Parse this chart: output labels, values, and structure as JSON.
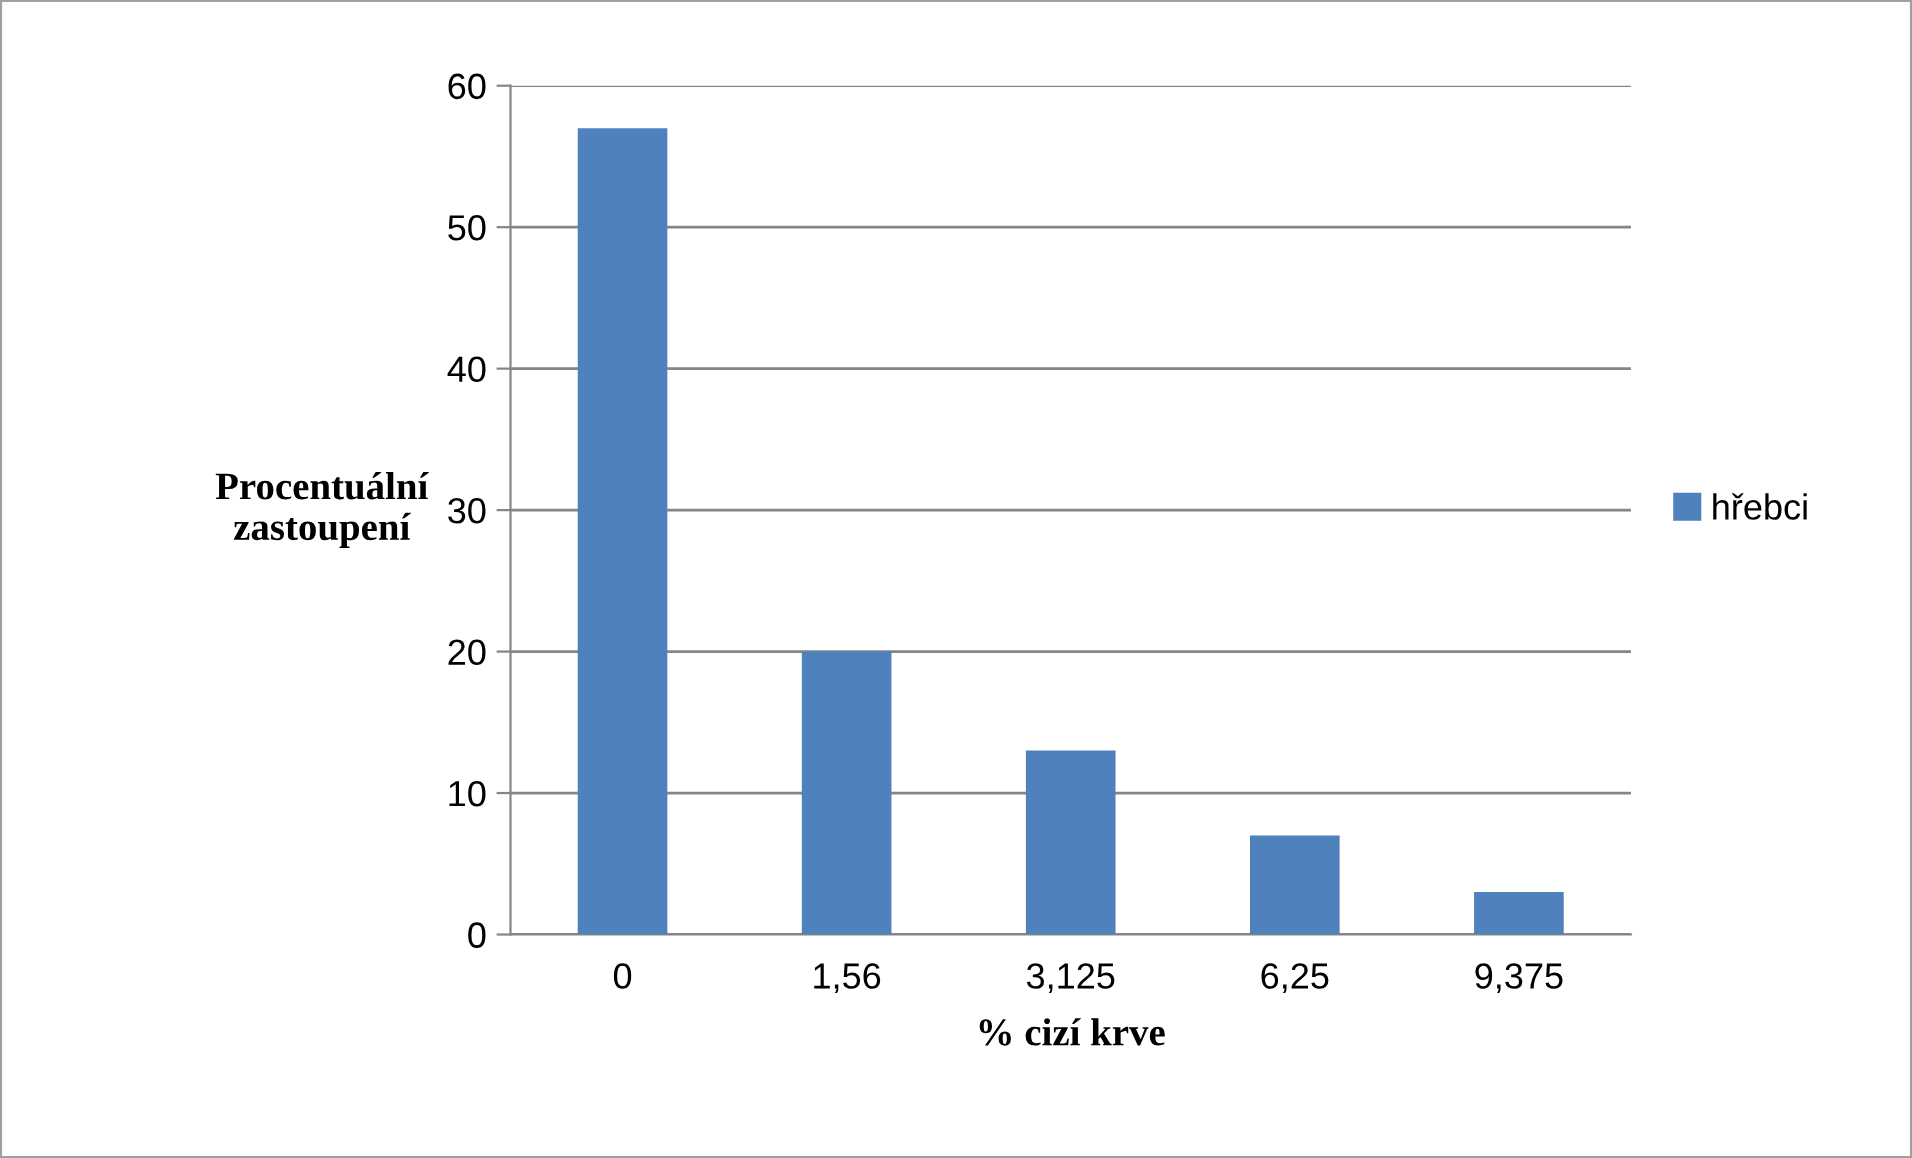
{
  "chart_data": {
    "type": "bar",
    "xlabel": "% cizí krve",
    "ylabel": "Procentuální\nzastoupení",
    "categories": [
      "0",
      "1,56",
      "3,125",
      "6,25",
      "9,375"
    ],
    "series": [
      {
        "name": "hřebci",
        "color": "#4f81bd",
        "values": [
          57,
          20,
          13,
          7,
          3
        ]
      }
    ],
    "ylim": [
      0,
      60
    ],
    "yticks": [
      0,
      10,
      20,
      30,
      40,
      50,
      60
    ],
    "grid": "y",
    "legend": "right"
  }
}
